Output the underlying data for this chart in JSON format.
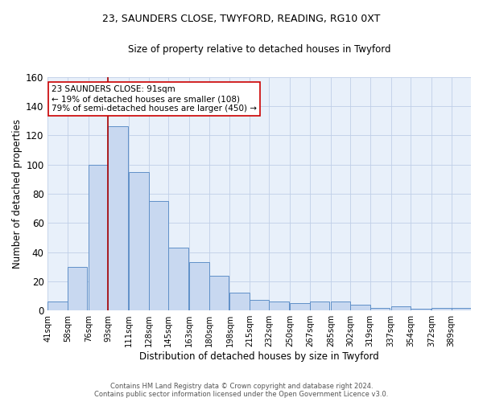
{
  "title_line1": "23, SAUNDERS CLOSE, TWYFORD, READING, RG10 0XT",
  "title_line2": "Size of property relative to detached houses in Twyford",
  "xlabel": "Distribution of detached houses by size in Twyford",
  "ylabel": "Number of detached properties",
  "categories": [
    "41sqm",
    "58sqm",
    "76sqm",
    "93sqm",
    "111sqm",
    "128sqm",
    "145sqm",
    "163sqm",
    "180sqm",
    "198sqm",
    "215sqm",
    "232sqm",
    "250sqm",
    "267sqm",
    "285sqm",
    "302sqm",
    "319sqm",
    "337sqm",
    "354sqm",
    "372sqm",
    "389sqm"
  ],
  "bar_counts": [
    6,
    30,
    100,
    126,
    95,
    75,
    43,
    33,
    24,
    12,
    7,
    6,
    5,
    6,
    6,
    4,
    2,
    3,
    1,
    2,
    2
  ],
  "bar_color": "#c8d8f0",
  "bar_edge_color": "#6090c8",
  "property_line_x": 93,
  "property_line_color": "#aa0000",
  "annotation_text": "23 SAUNDERS CLOSE: 91sqm\n← 19% of detached houses are smaller (108)\n79% of semi-detached houses are larger (450) →",
  "annotation_box_color": "#ffffff",
  "annotation_box_edge": "#cc0000",
  "ylim": [
    0,
    160
  ],
  "yticks": [
    0,
    20,
    40,
    60,
    80,
    100,
    120,
    140,
    160
  ],
  "grid_color": "#c0cfe8",
  "bg_color": "#e8f0fa",
  "footer_line1": "Contains HM Land Registry data © Crown copyright and database right 2024.",
  "footer_line2": "Contains public sector information licensed under the Open Government Licence v3.0."
}
